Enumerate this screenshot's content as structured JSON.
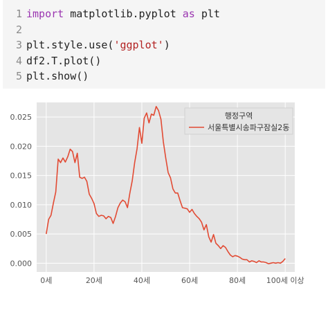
{
  "code_cell": {
    "lines": [
      {
        "num": "1",
        "parts": [
          {
            "t": "import",
            "c": "kw"
          },
          {
            "t": " matplotlib.pyplot ",
            "c": "tx"
          },
          {
            "t": "as",
            "c": "kw"
          },
          {
            "t": " plt",
            "c": "tx"
          }
        ]
      },
      {
        "num": "2",
        "parts": []
      },
      {
        "num": "3",
        "parts": [
          {
            "t": "plt.style.use(",
            "c": "tx"
          },
          {
            "t": "'ggplot'",
            "c": "str"
          },
          {
            "t": ")",
            "c": "tx"
          }
        ]
      },
      {
        "num": "4",
        "parts": [
          {
            "t": "df2.T.plot()",
            "c": "tx"
          }
        ]
      },
      {
        "num": "5",
        "parts": [
          {
            "t": "plt.show()",
            "c": "tx"
          }
        ]
      }
    ]
  },
  "chart_data": {
    "type": "line",
    "title": "",
    "xlabel": "",
    "ylabel": "",
    "xlim": [
      -4,
      104
    ],
    "ylim": [
      -0.0015,
      0.0275
    ],
    "grid": true,
    "style": "ggplot",
    "x_ticks": [
      {
        "value": 0,
        "label": "0세"
      },
      {
        "value": 20,
        "label": "20세"
      },
      {
        "value": 40,
        "label": "40세"
      },
      {
        "value": 60,
        "label": "60세"
      },
      {
        "value": 80,
        "label": "80세"
      },
      {
        "value": 100,
        "label": "100세 이상"
      }
    ],
    "y_ticks": [
      {
        "value": 0.0,
        "label": "0.000"
      },
      {
        "value": 0.005,
        "label": "0.005"
      },
      {
        "value": 0.01,
        "label": "0.010"
      },
      {
        "value": 0.015,
        "label": "0.015"
      },
      {
        "value": 0.02,
        "label": "0.020"
      },
      {
        "value": 0.025,
        "label": "0.025"
      }
    ],
    "legend": {
      "title": "행정구역",
      "placement": "top-right"
    },
    "series": [
      {
        "name": "서울특별시송파구잠실2동",
        "color": "#e24a33",
        "x": [
          0,
          1,
          2,
          3,
          4,
          5,
          6,
          7,
          8,
          9,
          10,
          11,
          12,
          13,
          14,
          15,
          16,
          17,
          18,
          19,
          20,
          21,
          22,
          23,
          24,
          25,
          26,
          27,
          28,
          29,
          30,
          31,
          32,
          33,
          34,
          35,
          36,
          37,
          38,
          39,
          40,
          41,
          42,
          43,
          44,
          45,
          46,
          47,
          48,
          49,
          50,
          51,
          52,
          53,
          54,
          55,
          56,
          57,
          58,
          59,
          60,
          61,
          62,
          63,
          64,
          65,
          66,
          67,
          68,
          69,
          70,
          71,
          72,
          73,
          74,
          75,
          76,
          77,
          78,
          79,
          80,
          81,
          82,
          83,
          84,
          85,
          86,
          87,
          88,
          89,
          90,
          91,
          92,
          93,
          94,
          95,
          96,
          97,
          98,
          99,
          100
        ],
        "values": [
          0.005,
          0.0075,
          0.0082,
          0.0103,
          0.0122,
          0.0178,
          0.0172,
          0.018,
          0.0173,
          0.0182,
          0.0195,
          0.0191,
          0.0172,
          0.0188,
          0.0147,
          0.0145,
          0.0147,
          0.014,
          0.0118,
          0.0111,
          0.0102,
          0.0085,
          0.008,
          0.0082,
          0.0081,
          0.0076,
          0.008,
          0.0078,
          0.0068,
          0.008,
          0.0095,
          0.0103,
          0.0108,
          0.0105,
          0.0095,
          0.012,
          0.0141,
          0.0172,
          0.0196,
          0.0232,
          0.0205,
          0.0248,
          0.0257,
          0.024,
          0.0255,
          0.0253,
          0.0268,
          0.0261,
          0.0246,
          0.0208,
          0.018,
          0.0155,
          0.0146,
          0.0127,
          0.012,
          0.012,
          0.0107,
          0.0095,
          0.0094,
          0.0093,
          0.0087,
          0.0092,
          0.0085,
          0.008,
          0.0076,
          0.007,
          0.0057,
          0.0066,
          0.0045,
          0.0036,
          0.0049,
          0.0034,
          0.003,
          0.0025,
          0.003,
          0.0027,
          0.002,
          0.0014,
          0.0011,
          0.0013,
          0.0012,
          0.001,
          0.0007,
          0.0006,
          0.0006,
          0.0002,
          0.0004,
          0.0003,
          0.0001,
          0.0004,
          0.0002,
          0.0002,
          0.0001,
          -0.0001,
          0.0,
          0.0001,
          0.0,
          0.0001,
          0.0,
          0.0003,
          0.0008
        ]
      }
    ]
  },
  "colors": {
    "plot_bg": "#e5e5e5",
    "grid": "#ffffff",
    "tick_text": "#555555",
    "line": "#e24a33",
    "code_bg": "#f5f5f5"
  }
}
